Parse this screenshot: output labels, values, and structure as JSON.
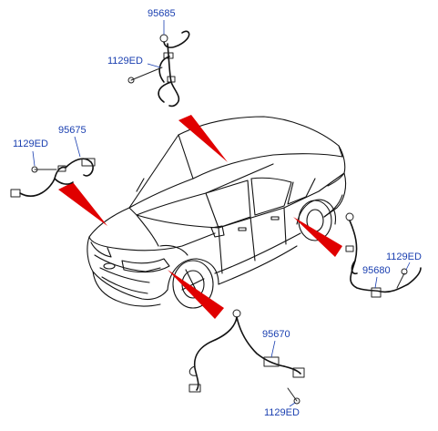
{
  "labels": {
    "front_right_sensor": "95685",
    "front_right_bolt": "1129ED",
    "front_left_sensor": "95675",
    "front_left_bolt": "1129ED",
    "rear_right_sensor": "95680",
    "rear_right_bolt": "1129ED",
    "rear_left_sensor": "95670",
    "rear_left_bolt": "1129ED"
  },
  "colors": {
    "label_text": "#1a3fb0",
    "pointer_arrow": "#e00000",
    "line_art": "#111111",
    "background": "#ffffff"
  }
}
